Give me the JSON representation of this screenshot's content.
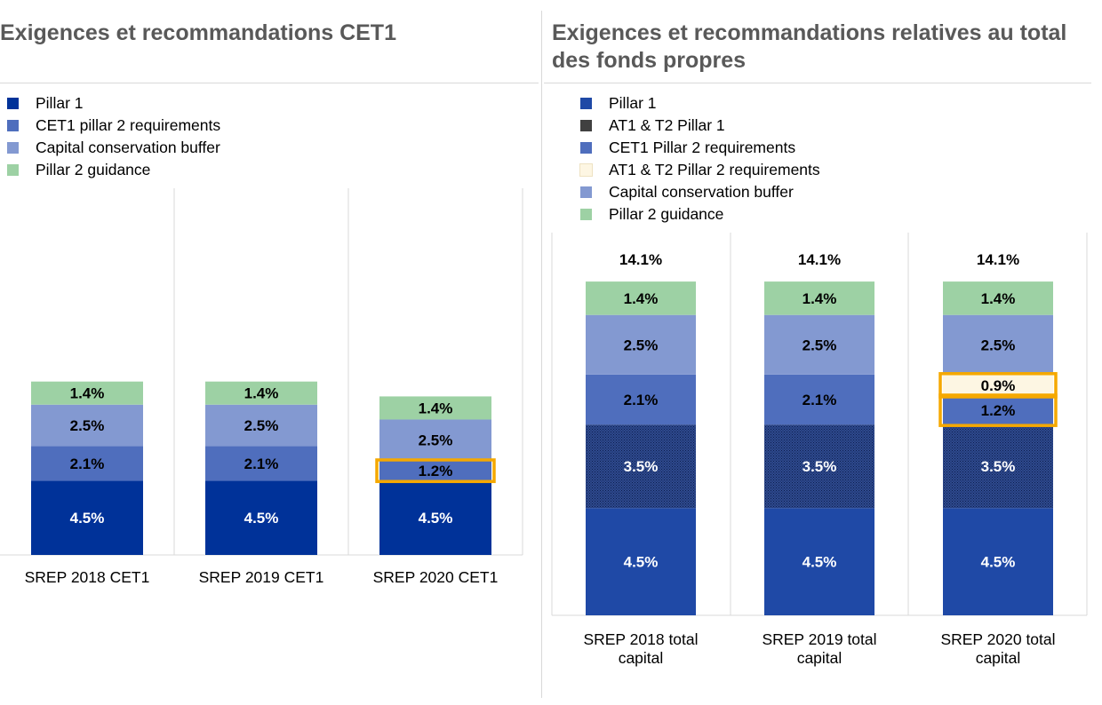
{
  "left_panel": {
    "title": "Exigences et recommandations CET1",
    "legend": [
      {
        "label": "Pillar 1",
        "color": "#003299"
      },
      {
        "label": "CET1 pillar 2 requirements",
        "color": "#4F6EBD"
      },
      {
        "label": "Capital conservation buffer",
        "color": "#8399D1"
      },
      {
        "label": "Pillar 2 guidance",
        "color": "#9DD1A4"
      }
    ]
  },
  "right_panel": {
    "title": "Exigences et recommandations relatives au total des fonds propres",
    "legend": [
      {
        "label": "Pillar 1",
        "color": "#1F49A6"
      },
      {
        "label": "AT1 & T2 Pillar 1",
        "color": "#404040"
      },
      {
        "label": "CET1 Pillar 2 requirements",
        "color": "#4F6EBD"
      },
      {
        "label": "AT1 & T2 Pillar 2 requirements",
        "color": "#FDF6E3"
      },
      {
        "label": "Capital conservation buffer",
        "color": "#8399D1"
      },
      {
        "label": "Pillar 2 guidance",
        "color": "#9DD1A4"
      }
    ]
  },
  "chart_data": [
    {
      "type": "bar",
      "stacked": true,
      "title": "Exigences et recommandations CET1",
      "categories": [
        "SREP 2018 CET1",
        "SREP 2019 CET1",
        "SREP 2020 CET1"
      ],
      "series": [
        {
          "name": "Pillar 1",
          "color": "#003299",
          "label_color": "#ffffff",
          "values": [
            4.5,
            4.5,
            4.5
          ],
          "labels": [
            "4.5%",
            "4.5%",
            "4.5%"
          ]
        },
        {
          "name": "CET1 pillar 2 requirements",
          "color": "#4F6EBD",
          "label_color": "#000000",
          "values": [
            2.1,
            2.1,
            1.2
          ],
          "labels": [
            "2.1%",
            "2.1%",
            "1.2%"
          ]
        },
        {
          "name": "Capital conservation buffer",
          "color": "#8399D1",
          "label_color": "#000000",
          "values": [
            2.5,
            2.5,
            2.5
          ],
          "labels": [
            "2.5%",
            "2.5%",
            "2.5%"
          ]
        },
        {
          "name": "Pillar 2 guidance",
          "color": "#9DD1A4",
          "label_color": "#000000",
          "values": [
            1.4,
            1.4,
            1.4
          ],
          "labels": [
            "1.4%",
            "1.4%",
            "1.4%"
          ]
        }
      ],
      "highlight": [
        {
          "category": 2,
          "series": [
            1
          ],
          "color": "#F5A800"
        }
      ],
      "ylim": [
        0,
        11.1
      ],
      "grid": false,
      "legend_position": "top-left"
    },
    {
      "type": "bar",
      "stacked": true,
      "title": "Exigences et recommandations relatives au total des fonds propres",
      "categories": [
        "SREP 2018 total capital",
        "SREP 2019 total capital",
        "SREP 2020 total capital"
      ],
      "category_lines": [
        [
          "SREP 2018 total",
          "capital"
        ],
        [
          "SREP 2019 total",
          "capital"
        ],
        [
          "SREP 2020 total",
          "capital"
        ]
      ],
      "totals": [
        "14.1%",
        "14.1%",
        "14.1%"
      ],
      "series": [
        {
          "name": "Pillar 1",
          "color": "#1F49A6",
          "label_color": "#ffffff",
          "values": [
            4.5,
            4.5,
            4.5
          ],
          "labels": [
            "4.5%",
            "4.5%",
            "4.5%"
          ]
        },
        {
          "name": "AT1 & T2 Pillar 1",
          "color": "#404040",
          "label_color": "#ffffff",
          "pattern": "dotted",
          "values": [
            3.5,
            3.5,
            3.5
          ],
          "labels": [
            "3.5%",
            "3.5%",
            "3.5%"
          ]
        },
        {
          "name": "CET1 Pillar 2 requirements",
          "color": "#4F6EBD",
          "label_color": "#000000",
          "values": [
            2.1,
            2.1,
            1.2
          ],
          "labels": [
            "2.1%",
            "2.1%",
            "1.2%"
          ]
        },
        {
          "name": "AT1 & T2 Pillar 2 requirements",
          "color": "#FDF6E3",
          "label_color": "#000000",
          "values": [
            0,
            0,
            0.9
          ],
          "labels": [
            "",
            "",
            "0.9%"
          ]
        },
        {
          "name": "Capital conservation buffer",
          "color": "#8399D1",
          "label_color": "#000000",
          "values": [
            2.5,
            2.5,
            2.5
          ],
          "labels": [
            "2.5%",
            "2.5%",
            "2.5%"
          ]
        },
        {
          "name": "Pillar 2 guidance",
          "color": "#9DD1A4",
          "label_color": "#000000",
          "values": [
            1.4,
            1.4,
            1.4
          ],
          "labels": [
            "1.4%",
            "1.4%",
            "1.4%"
          ]
        }
      ],
      "highlight": [
        {
          "category": 2,
          "series": [
            2,
            3
          ],
          "color": "#F5A800"
        }
      ],
      "ylim": [
        0,
        14.1
      ],
      "grid": false,
      "legend_position": "top-left"
    }
  ]
}
